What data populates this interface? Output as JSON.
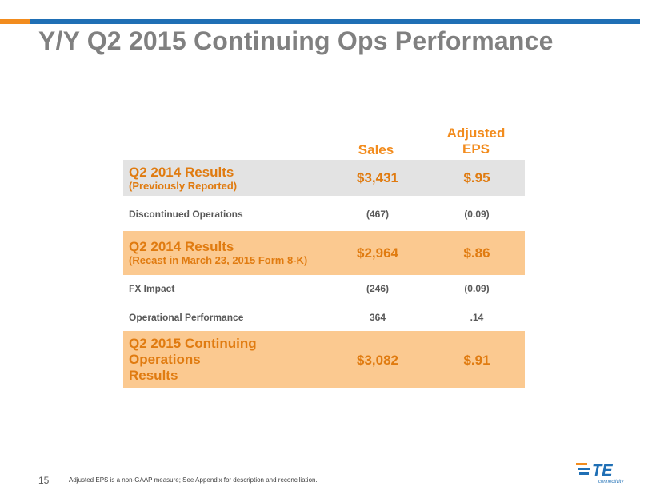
{
  "slide": {
    "title": "Y/Y Q2 2015 Continuing Ops Performance",
    "page_number": "15",
    "footnote": "Adjusted EPS is a non-GAAP measure; See Appendix for description and reconciliation."
  },
  "table": {
    "headers": {
      "sales": "Sales",
      "eps_line1": "Adjusted",
      "eps_line2": "EPS"
    },
    "rows": [
      {
        "label": "Q2 2014 Results",
        "sublabel": "(Previously Reported)",
        "sales": "$3,431",
        "eps": "$.95"
      },
      {
        "label": "Discontinued Operations",
        "sales": "(467)",
        "eps": "(0.09)"
      },
      {
        "label": "Q2 2014 Results",
        "sublabel": "(Recast in March 23, 2015 Form 8-K)",
        "sales": "$2,964",
        "eps": "$.86"
      },
      {
        "label": "FX Impact",
        "sales": "(246)",
        "eps": "(0.09)"
      },
      {
        "label": "Operational Performance",
        "sales": "364",
        "eps": ".14"
      },
      {
        "label_line1": "Q2 2015 Continuing",
        "label_line2": "Operations",
        "label_line3": "Results",
        "sales": "$3,082",
        "eps": "$.91"
      }
    ]
  },
  "logo": {
    "text": "TE",
    "subtext": "connectivity"
  },
  "colors": {
    "accent_orange": "#f28c1e",
    "accent_blue": "#1f6fb5",
    "highlight_row": "#fbc990",
    "gray_row": "#e3e3e3"
  }
}
